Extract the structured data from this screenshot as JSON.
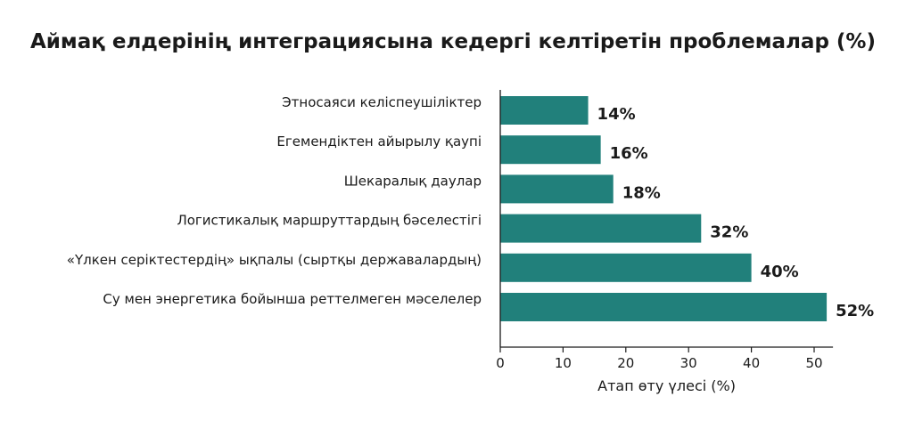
{
  "chart_data": {
    "type": "bar",
    "orientation": "horizontal",
    "title": "Аймақ елдерінің интеграциясына кедергі келтіретін проблемалар (%)",
    "xlabel": "Атап өту үлесі (%)",
    "ylabel": "",
    "categories": [
      "Этносаяси келіспеушіліктер",
      "Егемендіктен айырылу қаупі",
      "Шекаралық даулар",
      "Логистикалық маршруттардың бәселестігі",
      "«Үлкен серіктестердің» ықпалы (сыртқы державалардың)",
      "Су мен энергетика бойынша реттелмеген мәселелер"
    ],
    "values": [
      14,
      16,
      18,
      32,
      40,
      52
    ],
    "value_labels": [
      "14%",
      "16%",
      "18%",
      "32%",
      "40%",
      "52%"
    ],
    "xlim": [
      0,
      53
    ],
    "xticks": [
      0,
      10,
      20,
      30,
      40,
      50
    ],
    "grid": false,
    "legend": "none",
    "bar_color": "#21807b"
  }
}
